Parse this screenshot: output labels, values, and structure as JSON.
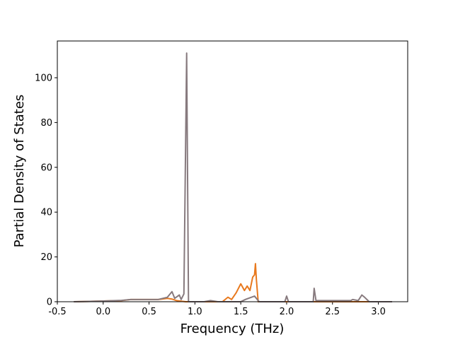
{
  "chart_data": {
    "type": "line",
    "xlabel": "Frequency (THz)",
    "ylabel": "Partial Density of States",
    "xlim": [
      -0.5,
      3.32
    ],
    "ylim": [
      0,
      116.4
    ],
    "xticks": [
      -0.5,
      {
        "value": 0,
        "label": "0.0"
      },
      0.5,
      {
        "value": 1,
        "label": "1.0"
      },
      1.5,
      {
        "value": 2,
        "label": "2.0"
      },
      2.5,
      {
        "value": 3,
        "label": "3.0"
      }
    ],
    "yticks": [
      0,
      20,
      40,
      60,
      80,
      100
    ],
    "series": [
      {
        "color": "#e8791e",
        "x": [
          -0.32,
          0.0,
          0.2,
          0.3,
          0.6,
          0.7,
          0.75,
          0.8,
          0.9,
          1.3,
          1.36,
          1.4,
          1.45,
          1.5,
          1.54,
          1.57,
          1.6,
          1.63,
          1.65,
          1.66,
          1.67,
          1.69,
          2.0,
          3.15
        ],
        "values": [
          0,
          0.3,
          0.5,
          1,
          1,
          1.5,
          1.2,
          0.5,
          0,
          0,
          2,
          1,
          4,
          8,
          5,
          7,
          5,
          11,
          12,
          17,
          10,
          0,
          0,
          0
        ]
      },
      {
        "color": "#877a7e",
        "x": [
          -0.32,
          0.0,
          0.2,
          0.3,
          0.6,
          0.7,
          0.75,
          0.78,
          0.83,
          0.85,
          0.88,
          0.91,
          0.93,
          1.1,
          1.17,
          1.25,
          1.5,
          1.55,
          1.65,
          1.7,
          1.98,
          2.0,
          2.02,
          2.29,
          2.3,
          2.32,
          2.7,
          2.72,
          2.78,
          2.82,
          2.85,
          2.9,
          3.15
        ],
        "values": [
          0,
          0.3,
          0.6,
          1,
          1,
          2,
          4.5,
          1.5,
          3,
          1,
          3.5,
          111,
          0,
          0,
          0.5,
          0,
          0,
          1,
          2.5,
          0,
          0,
          2.5,
          0,
          0,
          6,
          0.5,
          0.5,
          1,
          0.5,
          3,
          2,
          0,
          0
        ]
      }
    ]
  }
}
